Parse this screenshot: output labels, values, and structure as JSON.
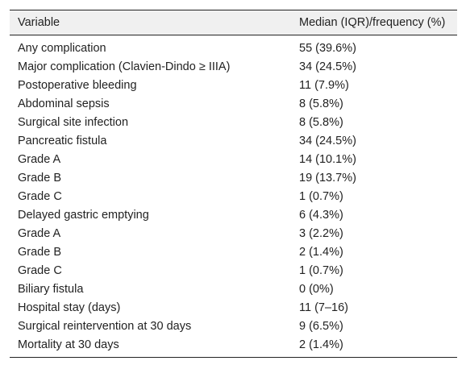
{
  "table": {
    "header": [
      "Variable",
      "Median (IQR)/frequency (%)"
    ],
    "rows": [
      [
        "Any complication",
        "55 (39.6%)"
      ],
      [
        "Major complication (Clavien-Dindo ≥ IIIA)",
        "34 (24.5%)"
      ],
      [
        "Postoperative bleeding",
        "11 (7.9%)"
      ],
      [
        "Abdominal sepsis",
        "8 (5.8%)"
      ],
      [
        "Surgical site infection",
        "8 (5.8%)"
      ],
      [
        "Pancreatic fistula",
        "34 (24.5%)"
      ],
      [
        "Grade A",
        "14 (10.1%)"
      ],
      [
        "Grade B",
        "19 (13.7%)"
      ],
      [
        "Grade C",
        "1 (0.7%)"
      ],
      [
        "Delayed gastric emptying",
        "6 (4.3%)"
      ],
      [
        "Grade A",
        "3 (2.2%)"
      ],
      [
        "Grade B",
        "2 (1.4%)"
      ],
      [
        "Grade C",
        "1 (0.7%)"
      ],
      [
        "Biliary fistula",
        "0 (0%)"
      ],
      [
        "Hospital stay (days)",
        "11 (7–16)"
      ],
      [
        "Surgical reintervention at 30 days",
        "9 (6.5%)"
      ],
      [
        "Mortality at 30 days",
        "2 (1.4%)"
      ]
    ]
  }
}
